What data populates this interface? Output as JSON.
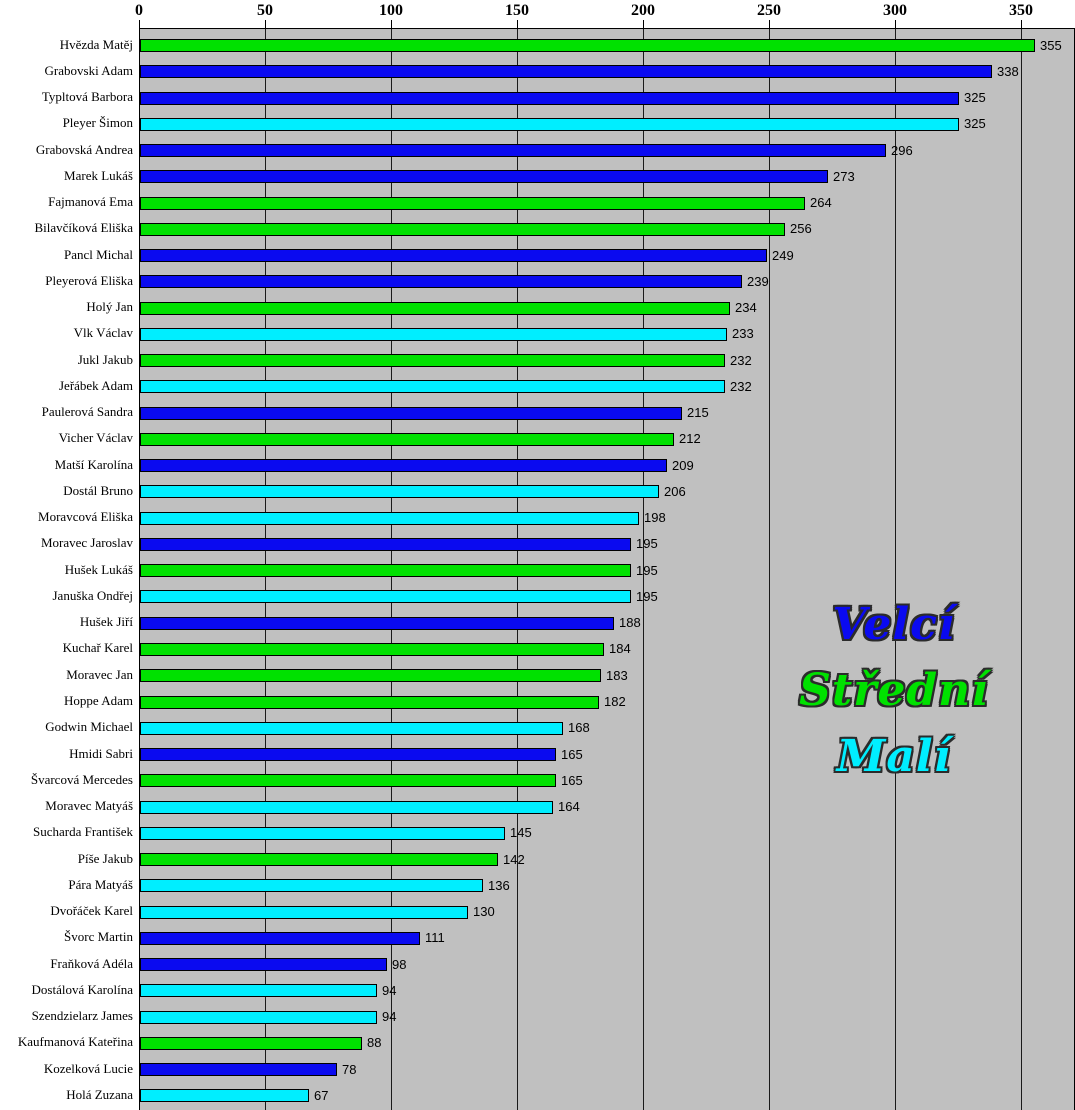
{
  "chart_data": {
    "type": "bar",
    "orientation": "horizontal",
    "title": "",
    "xlabel": "",
    "ylabel": "",
    "xlim": [
      0,
      371
    ],
    "x_ticks": [
      "0",
      "50",
      "100",
      "150",
      "200",
      "250",
      "300",
      "350"
    ],
    "grid": "vertical major gridlines, on",
    "plot_background": "#c0c0c0",
    "gridline_color": "#1a1a1a",
    "legend_position": "right-middle",
    "groups": {
      "velci": {
        "label": "Velcí",
        "color": "#0a0af0"
      },
      "stredni": {
        "label": "Střední",
        "color": "#00e100"
      },
      "mali": {
        "label": "Malí",
        "color": "#00eeff"
      }
    },
    "legend_order": [
      "velci",
      "stredni",
      "mali"
    ],
    "bars": [
      {
        "name": "Hvězda Matěj",
        "value": 355,
        "group": "stredni"
      },
      {
        "name": "Grabovski Adam",
        "value": 338,
        "group": "velci"
      },
      {
        "name": "Typltová Barbora",
        "value": 325,
        "group": "velci"
      },
      {
        "name": "Pleyer Šimon",
        "value": 325,
        "group": "mali"
      },
      {
        "name": "Grabovská Andrea",
        "value": 296,
        "group": "velci"
      },
      {
        "name": "Marek Lukáš",
        "value": 273,
        "group": "velci"
      },
      {
        "name": "Fajmanová Ema",
        "value": 264,
        "group": "stredni"
      },
      {
        "name": "Bilavčíková Eliška",
        "value": 256,
        "group": "stredni"
      },
      {
        "name": "Pancl Michal",
        "value": 249,
        "group": "velci"
      },
      {
        "name": "Pleyerová Eliška",
        "value": 239,
        "group": "velci"
      },
      {
        "name": "Holý Jan",
        "value": 234,
        "group": "stredni"
      },
      {
        "name": "Vlk Václav",
        "value": 233,
        "group": "mali"
      },
      {
        "name": "Jukl Jakub",
        "value": 232,
        "group": "stredni"
      },
      {
        "name": "Jeřábek Adam",
        "value": 232,
        "group": "mali"
      },
      {
        "name": "Paulerová Sandra",
        "value": 215,
        "group": "velci"
      },
      {
        "name": "Vicher Václav",
        "value": 212,
        "group": "stredni"
      },
      {
        "name": "Matší Karolína",
        "value": 209,
        "group": "velci"
      },
      {
        "name": "Dostál Bruno",
        "value": 206,
        "group": "mali"
      },
      {
        "name": "Moravcová Eliška",
        "value": 198,
        "group": "mali"
      },
      {
        "name": "Moravec Jaroslav",
        "value": 195,
        "group": "velci"
      },
      {
        "name": "Hušek Lukáš",
        "value": 195,
        "group": "stredni"
      },
      {
        "name": "Januška Ondřej",
        "value": 195,
        "group": "mali"
      },
      {
        "name": "Hušek Jiří",
        "value": 188,
        "group": "velci"
      },
      {
        "name": "Kuchař Karel",
        "value": 184,
        "group": "stredni"
      },
      {
        "name": "Moravec Jan",
        "value": 183,
        "group": "stredni"
      },
      {
        "name": "Hoppe Adam",
        "value": 182,
        "group": "stredni"
      },
      {
        "name": "Godwin Michael",
        "value": 168,
        "group": "mali"
      },
      {
        "name": "Hmidi Sabri",
        "value": 165,
        "group": "velci"
      },
      {
        "name": "Švarcová Mercedes",
        "value": 165,
        "group": "stredni"
      },
      {
        "name": "Moravec Matyáš",
        "value": 164,
        "group": "mali"
      },
      {
        "name": "Sucharda František",
        "value": 145,
        "group": "mali"
      },
      {
        "name": "Píše Jakub",
        "value": 142,
        "group": "stredni"
      },
      {
        "name": "Pára Matyáš",
        "value": 136,
        "group": "mali"
      },
      {
        "name": "Dvořáček Karel",
        "value": 130,
        "group": "mali"
      },
      {
        "name": "Švorc Martin",
        "value": 111,
        "group": "velci"
      },
      {
        "name": "Fraňková Adéla",
        "value": 98,
        "group": "velci"
      },
      {
        "name": "Dostálová Karolína",
        "value": 94,
        "group": "mali"
      },
      {
        "name": "Szendzielarz James",
        "value": 94,
        "group": "mali"
      },
      {
        "name": "Kaufmanová Kateřina",
        "value": 88,
        "group": "stredni"
      },
      {
        "name": "Kozelková Lucie",
        "value": 78,
        "group": "velci"
      },
      {
        "name": "Holá Zuzana",
        "value": 67,
        "group": "mali"
      }
    ]
  }
}
